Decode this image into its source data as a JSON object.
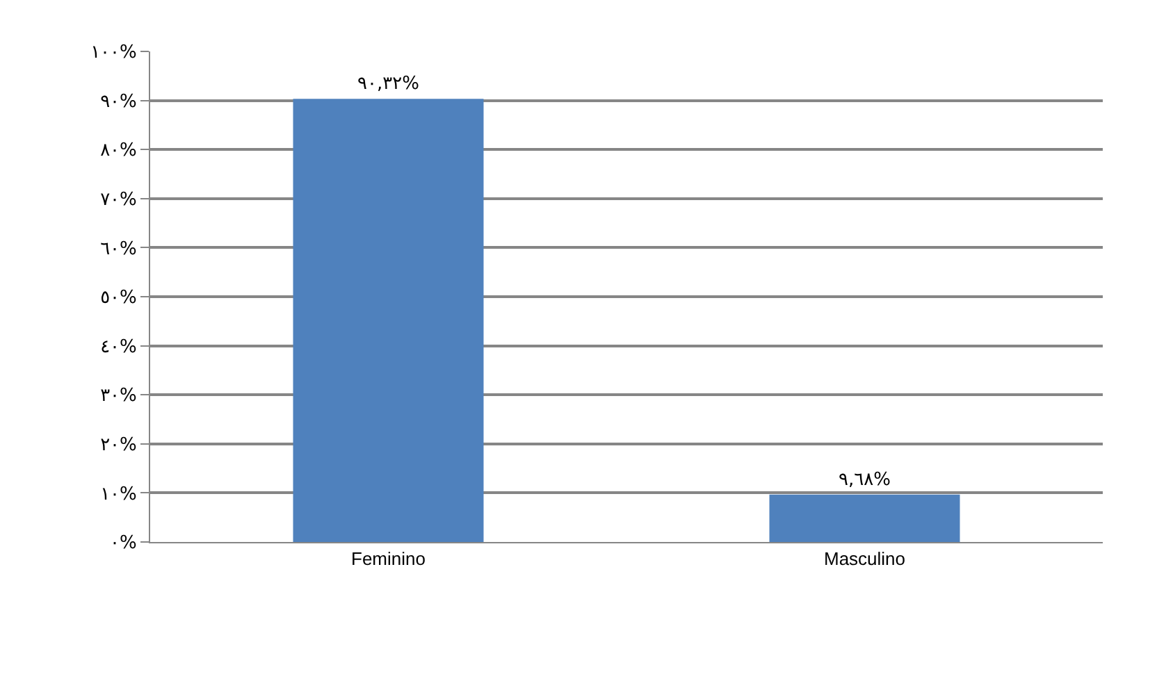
{
  "chart_data": {
    "type": "bar",
    "categories": [
      "Feminino",
      "Masculino"
    ],
    "values": [
      90.32,
      9.68
    ],
    "color": "#4f81bd",
    "value_labels": [
      "٩٠,٣٢%",
      "٩,٦٨%"
    ],
    "ylim": [
      0,
      100
    ],
    "yticks": [
      {
        "value": 0,
        "label": "٠%"
      },
      {
        "value": 10,
        "label": "١٠%"
      },
      {
        "value": 20,
        "label": "٢٠%"
      },
      {
        "value": 30,
        "label": "٣٠%"
      },
      {
        "value": 40,
        "label": "٤٠%"
      },
      {
        "value": 50,
        "label": "٥٠%"
      },
      {
        "value": 60,
        "label": "٦٠%"
      },
      {
        "value": 70,
        "label": "٧٠%"
      },
      {
        "value": 80,
        "label": "٨٠%"
      },
      {
        "value": 90,
        "label": "٩٠%"
      },
      {
        "value": 100,
        "label": "١٠٠%"
      }
    ],
    "grid": "y",
    "legend": false
  }
}
